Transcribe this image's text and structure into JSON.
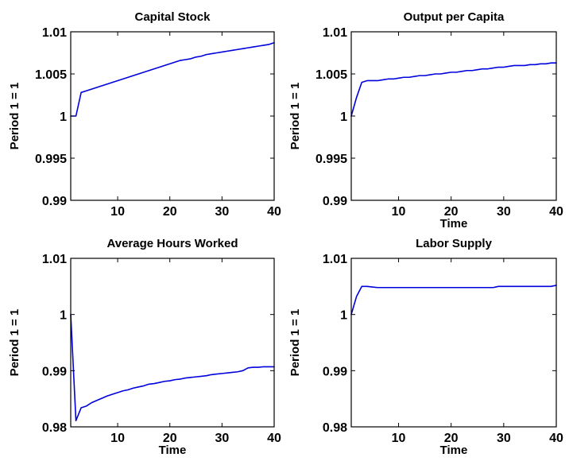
{
  "colors": {
    "line": "#0000dd",
    "axis": "#000000",
    "background": "#ffffff"
  },
  "chart_data": [
    {
      "type": "line",
      "title": "Capital Stock",
      "xlabel": "",
      "ylabel": "Period 1 = 1",
      "xlim": [
        1,
        40
      ],
      "ylim": [
        0.99,
        1.01
      ],
      "xticks": [
        10,
        20,
        30,
        40
      ],
      "xtick_labels": [
        "10",
        "20",
        "30",
        "40"
      ],
      "yticks": [
        0.99,
        0.995,
        1.0,
        1.005,
        1.01
      ],
      "ytick_labels": [
        "0.99",
        "0.995",
        "1",
        "1.005",
        "1.01"
      ],
      "grid": false,
      "series": [
        {
          "x": [
            1,
            2,
            3,
            4,
            5,
            6,
            7,
            8,
            9,
            10,
            11,
            12,
            13,
            14,
            15,
            16,
            17,
            18,
            19,
            20,
            21,
            22,
            23,
            24,
            25,
            26,
            27,
            28,
            29,
            30,
            31,
            32,
            33,
            34,
            35,
            36,
            37,
            38,
            39,
            40
          ],
          "y": [
            1.0,
            1.0,
            1.0028,
            1.003,
            1.0032,
            1.0034,
            1.0036,
            1.0038,
            1.004,
            1.0042,
            1.0044,
            1.0046,
            1.0048,
            1.005,
            1.0052,
            1.0054,
            1.0056,
            1.0058,
            1.006,
            1.0062,
            1.0064,
            1.0066,
            1.0067,
            1.0068,
            1.007,
            1.0071,
            1.0073,
            1.0074,
            1.0075,
            1.0076,
            1.0077,
            1.0078,
            1.0079,
            1.008,
            1.0081,
            1.0082,
            1.0083,
            1.0084,
            1.0085,
            1.0087
          ]
        }
      ]
    },
    {
      "type": "line",
      "title": "Output per Capita",
      "xlabel": "Time",
      "ylabel": "Period 1 = 1",
      "xlim": [
        1,
        40
      ],
      "ylim": [
        0.99,
        1.01
      ],
      "xticks": [
        10,
        20,
        30,
        40
      ],
      "xtick_labels": [
        "10",
        "20",
        "30",
        "40"
      ],
      "yticks": [
        0.99,
        0.995,
        1.0,
        1.005,
        1.01
      ],
      "ytick_labels": [
        "0.99",
        "0.995",
        "1",
        "1.005",
        "1.01"
      ],
      "grid": false,
      "series": [
        {
          "x": [
            1,
            2,
            3,
            4,
            5,
            6,
            7,
            8,
            9,
            10,
            11,
            12,
            13,
            14,
            15,
            16,
            17,
            18,
            19,
            20,
            21,
            22,
            23,
            24,
            25,
            26,
            27,
            28,
            29,
            30,
            31,
            32,
            33,
            34,
            35,
            36,
            37,
            38,
            39,
            40
          ],
          "y": [
            1.0,
            1.0022,
            1.004,
            1.0042,
            1.0042,
            1.0042,
            1.0043,
            1.0044,
            1.0044,
            1.0045,
            1.0046,
            1.0046,
            1.0047,
            1.0048,
            1.0048,
            1.0049,
            1.005,
            1.005,
            1.0051,
            1.0052,
            1.0052,
            1.0053,
            1.0054,
            1.0054,
            1.0055,
            1.0056,
            1.0056,
            1.0057,
            1.0058,
            1.0058,
            1.0059,
            1.006,
            1.006,
            1.006,
            1.0061,
            1.0061,
            1.0062,
            1.0062,
            1.0063,
            1.0063
          ]
        }
      ]
    },
    {
      "type": "line",
      "title": "Average Hours Worked",
      "xlabel": "Time",
      "ylabel": "Period 1 = 1",
      "xlim": [
        1,
        40
      ],
      "ylim": [
        0.98,
        1.01
      ],
      "xticks": [
        10,
        20,
        30,
        40
      ],
      "xtick_labels": [
        "10",
        "20",
        "30",
        "40"
      ],
      "yticks": [
        0.98,
        0.99,
        1.0,
        1.01
      ],
      "ytick_labels": [
        "0.98",
        "0.99",
        "1",
        "1.01"
      ],
      "grid": false,
      "series": [
        {
          "x": [
            1,
            2,
            3,
            4,
            5,
            6,
            7,
            8,
            9,
            10,
            11,
            12,
            13,
            14,
            15,
            16,
            17,
            18,
            19,
            20,
            21,
            22,
            23,
            24,
            25,
            26,
            27,
            28,
            29,
            30,
            31,
            32,
            33,
            34,
            35,
            36,
            37,
            38,
            39,
            40
          ],
          "y": [
            1.0,
            0.9811,
            0.9834,
            0.9837,
            0.9843,
            0.9847,
            0.9851,
            0.9855,
            0.9858,
            0.9861,
            0.9864,
            0.9866,
            0.9869,
            0.9871,
            0.9873,
            0.9876,
            0.9877,
            0.9879,
            0.9881,
            0.9882,
            0.9884,
            0.9885,
            0.9887,
            0.9888,
            0.9889,
            0.989,
            0.9891,
            0.9893,
            0.9894,
            0.9895,
            0.9896,
            0.9897,
            0.9898,
            0.99,
            0.9905,
            0.9906,
            0.9906,
            0.9907,
            0.9907,
            0.9907
          ]
        }
      ]
    },
    {
      "type": "line",
      "title": "Labor Supply",
      "xlabel": "Time",
      "ylabel": "Period 1 = 1",
      "xlim": [
        1,
        40
      ],
      "ylim": [
        0.98,
        1.01
      ],
      "xticks": [
        10,
        20,
        30,
        40
      ],
      "xtick_labels": [
        "10",
        "20",
        "30",
        "40"
      ],
      "yticks": [
        0.98,
        0.99,
        1.0,
        1.01
      ],
      "ytick_labels": [
        "0.98",
        "0.99",
        "1",
        "1.01"
      ],
      "grid": false,
      "series": [
        {
          "x": [
            1,
            2,
            3,
            4,
            5,
            6,
            7,
            8,
            9,
            10,
            11,
            12,
            13,
            14,
            15,
            16,
            17,
            18,
            19,
            20,
            21,
            22,
            23,
            24,
            25,
            26,
            27,
            28,
            29,
            30,
            31,
            32,
            33,
            34,
            35,
            36,
            37,
            38,
            39,
            40
          ],
          "y": [
            1.0,
            1.0032,
            1.005,
            1.005,
            1.0049,
            1.0048,
            1.0048,
            1.0048,
            1.0048,
            1.0048,
            1.0048,
            1.0048,
            1.0048,
            1.0048,
            1.0048,
            1.0048,
            1.0048,
            1.0048,
            1.0048,
            1.0048,
            1.0048,
            1.0048,
            1.0048,
            1.0048,
            1.0048,
            1.0048,
            1.0048,
            1.0048,
            1.005,
            1.005,
            1.005,
            1.005,
            1.005,
            1.005,
            1.005,
            1.005,
            1.005,
            1.005,
            1.005,
            1.0052
          ]
        }
      ]
    }
  ]
}
